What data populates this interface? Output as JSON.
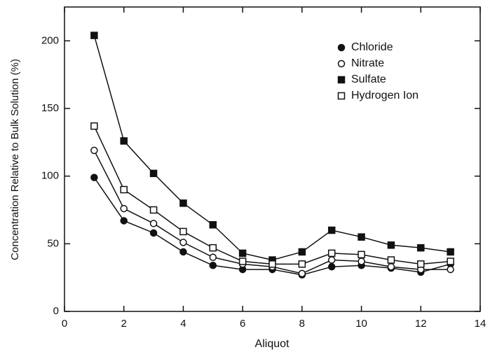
{
  "chart_data": {
    "type": "line",
    "x_label": "Aliquot",
    "y_label": "Concentration Relative to Bulk Solution (%)",
    "x": [
      1,
      2,
      3,
      4,
      5,
      6,
      7,
      8,
      9,
      10,
      11,
      12,
      13
    ],
    "series": [
      {
        "name": "Chloride",
        "color": "#111111",
        "marker": "filled-circle",
        "values": [
          99,
          67,
          58,
          44,
          34,
          31,
          31,
          27,
          33,
          34,
          32,
          29,
          35
        ]
      },
      {
        "name": "Nitrate",
        "color": "#111111",
        "marker": "open-circle",
        "values": [
          119,
          76,
          65,
          51,
          40,
          35,
          33,
          28,
          38,
          37,
          33,
          31,
          31
        ]
      },
      {
        "name": "Sulfate",
        "color": "#111111",
        "marker": "filled-square",
        "values": [
          204,
          126,
          102,
          80,
          64,
          43,
          38,
          44,
          60,
          55,
          49,
          47,
          44
        ]
      },
      {
        "name": "Hydrogen Ion",
        "color": "#111111",
        "marker": "open-square",
        "values": [
          137,
          90,
          75,
          59,
          47,
          37,
          35,
          35,
          43,
          42,
          38,
          35,
          37
        ]
      }
    ],
    "xlim": [
      0,
      14
    ],
    "xticks": [
      0,
      2,
      4,
      6,
      8,
      10,
      12,
      14
    ],
    "ylim": [
      0,
      225
    ],
    "yticks": [
      0,
      50,
      100,
      150,
      200
    ],
    "legend": "upper right"
  }
}
